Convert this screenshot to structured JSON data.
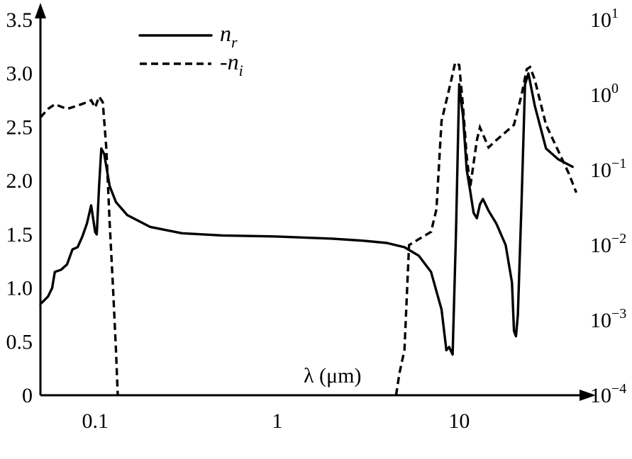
{
  "chart_data": {
    "type": "line",
    "xlabel": "λ (μm)",
    "x_scale": "log",
    "xlim": [
      0.05,
      45
    ],
    "x_ticks": [
      "0.1",
      "1",
      "10"
    ],
    "y_left": {
      "ylim": [
        0,
        3.5
      ],
      "ticks": [
        "0",
        "0.5",
        "1.0",
        "1.5",
        "2.0",
        "2.5",
        "3.0",
        "3.5"
      ]
    },
    "y_right": {
      "scale": "log",
      "ylim": [
        0.0001,
        10
      ],
      "ticks": [
        "10^-4",
        "10^-3",
        "10^-2",
        "10^-1",
        "10^0",
        "10^1"
      ]
    },
    "legend_position": "top-left",
    "series": [
      {
        "name": "n_r",
        "legend_main": "n",
        "legend_sub": "r",
        "style": "solid",
        "axis": "left",
        "points": [
          [
            0.05,
            0.85
          ],
          [
            0.055,
            0.92
          ],
          [
            0.058,
            1.0
          ],
          [
            0.06,
            1.15
          ],
          [
            0.065,
            1.17
          ],
          [
            0.07,
            1.22
          ],
          [
            0.075,
            1.36
          ],
          [
            0.08,
            1.38
          ],
          [
            0.085,
            1.48
          ],
          [
            0.09,
            1.6
          ],
          [
            0.095,
            1.77
          ],
          [
            0.1,
            1.52
          ],
          [
            0.102,
            1.5
          ],
          [
            0.105,
            1.95
          ],
          [
            0.108,
            2.3
          ],
          [
            0.112,
            2.25
          ],
          [
            0.12,
            1.95
          ],
          [
            0.13,
            1.8
          ],
          [
            0.15,
            1.68
          ],
          [
            0.2,
            1.57
          ],
          [
            0.3,
            1.51
          ],
          [
            0.5,
            1.49
          ],
          [
            1.0,
            1.48
          ],
          [
            2.0,
            1.46
          ],
          [
            3.0,
            1.44
          ],
          [
            4.0,
            1.42
          ],
          [
            5.0,
            1.38
          ],
          [
            6.0,
            1.3
          ],
          [
            7.0,
            1.15
          ],
          [
            8.0,
            0.8
          ],
          [
            8.5,
            0.42
          ],
          [
            8.8,
            0.45
          ],
          [
            9.2,
            0.38
          ],
          [
            9.6,
            1.5
          ],
          [
            10.0,
            2.9
          ],
          [
            10.5,
            2.6
          ],
          [
            11.0,
            2.1
          ],
          [
            11.5,
            1.9
          ],
          [
            12.0,
            1.7
          ],
          [
            12.5,
            1.65
          ],
          [
            13.0,
            1.78
          ],
          [
            13.5,
            1.83
          ],
          [
            14.5,
            1.72
          ],
          [
            16.0,
            1.6
          ],
          [
            18.0,
            1.4
          ],
          [
            19.5,
            1.05
          ],
          [
            20.0,
            0.6
          ],
          [
            20.5,
            0.55
          ],
          [
            21.0,
            0.75
          ],
          [
            22.0,
            1.8
          ],
          [
            23.0,
            2.9
          ],
          [
            24.0,
            3.0
          ],
          [
            26.0,
            2.7
          ],
          [
            30.0,
            2.3
          ],
          [
            35.0,
            2.2
          ],
          [
            42.0,
            2.13
          ]
        ]
      },
      {
        "name": "-n_i",
        "legend_main": "-n",
        "legend_sub": "i",
        "style": "dashed",
        "axis": "right",
        "points": [
          [
            0.05,
            0.5
          ],
          [
            0.055,
            0.65
          ],
          [
            0.06,
            0.75
          ],
          [
            0.07,
            0.65
          ],
          [
            0.08,
            0.72
          ],
          [
            0.09,
            0.8
          ],
          [
            0.095,
            0.85
          ],
          [
            0.1,
            0.68
          ],
          [
            0.105,
            0.95
          ],
          [
            0.11,
            0.8
          ],
          [
            0.115,
            0.2
          ],
          [
            0.12,
            0.02
          ],
          [
            0.125,
            0.003
          ],
          [
            0.13,
            0.0004
          ],
          [
            0.133,
            0.0001
          ],
          [
            4.5,
            0.0001
          ],
          [
            4.7,
            0.0002
          ],
          [
            5.0,
            0.0004
          ],
          [
            5.3,
            0.01
          ],
          [
            6.0,
            0.012
          ],
          [
            7.0,
            0.015
          ],
          [
            7.5,
            0.03
          ],
          [
            8.0,
            0.45
          ],
          [
            9.0,
            1.5
          ],
          [
            9.5,
            2.7
          ],
          [
            10.0,
            2.5
          ],
          [
            10.5,
            0.7
          ],
          [
            11.0,
            0.15
          ],
          [
            11.5,
            0.06
          ],
          [
            12.5,
            0.25
          ],
          [
            13.0,
            0.37
          ],
          [
            13.5,
            0.3
          ],
          [
            14.5,
            0.2
          ],
          [
            16.0,
            0.25
          ],
          [
            18.0,
            0.32
          ],
          [
            20.0,
            0.4
          ],
          [
            22.0,
            1.0
          ],
          [
            23.5,
            2.2
          ],
          [
            24.5,
            2.35
          ],
          [
            26.0,
            1.6
          ],
          [
            30.0,
            0.4
          ],
          [
            35.0,
            0.18
          ],
          [
            40.0,
            0.09
          ],
          [
            44.0,
            0.05
          ]
        ]
      }
    ]
  }
}
